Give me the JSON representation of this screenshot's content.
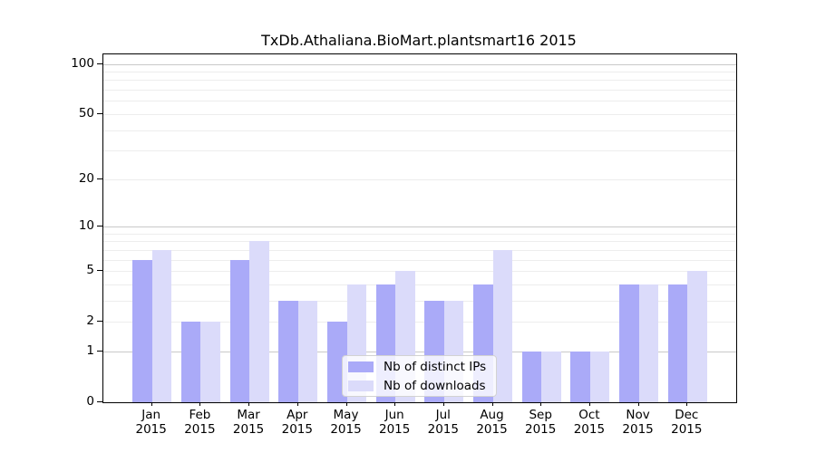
{
  "chart_data": {
    "type": "bar",
    "title": "TxDb.Athaliana.BioMart.plantsmart16 2015",
    "categories": [
      "Jan 2015",
      "Feb 2015",
      "Mar 2015",
      "Apr 2015",
      "May 2015",
      "Jun 2015",
      "Jul 2015",
      "Aug 2015",
      "Sep 2015",
      "Oct 2015",
      "Nov 2015",
      "Dec 2015"
    ],
    "series": [
      {
        "name": "Nb of distinct IPs",
        "color": "#aaaaf8",
        "values": [
          6,
          2,
          6,
          3,
          2,
          4,
          3,
          4,
          1,
          1,
          4,
          4
        ]
      },
      {
        "name": "Nb of downloads",
        "color": "#dbdbfa",
        "values": [
          7,
          2,
          8,
          3,
          4,
          5,
          3,
          7,
          1,
          1,
          4,
          5
        ]
      }
    ],
    "xlabel": "",
    "ylabel": "",
    "yscale": "log1p",
    "yticks": [
      0,
      1,
      2,
      5,
      10,
      20,
      50,
      100
    ],
    "ylim": [
      0,
      114
    ],
    "grid": "horizontal",
    "minor_gridline_decades": [
      1,
      10
    ],
    "legend_position": "bottom-center"
  },
  "colors": {
    "bar_ips": "#aaaaf8",
    "bar_downloads": "#dbdbfa",
    "gridline_minor": "#ededed",
    "gridline_major": "#c9c9c9",
    "axis": "#000000",
    "background": "#ffffff",
    "legend_background": "rgba(255,255,255,0.8)",
    "legend_border": "#d2d2d2"
  }
}
